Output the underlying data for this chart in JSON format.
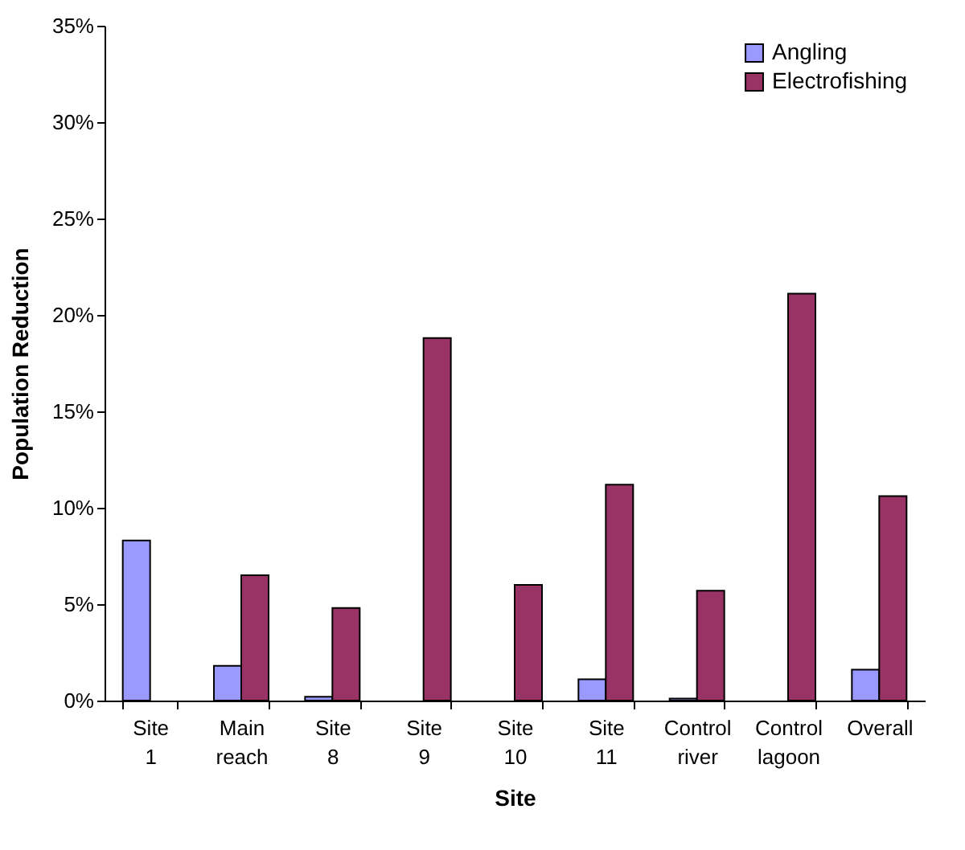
{
  "chart_data": {
    "type": "bar",
    "xlabel": "Site",
    "ylabel": "Population Reduction",
    "categories": [
      "Site 1",
      "Main reach",
      "Site 8",
      "Site 9",
      "Site 10",
      "Site 11",
      "Control river",
      "Control lagoon",
      "Overall"
    ],
    "series": [
      {
        "name": "Angling",
        "color": "#9999ff",
        "values": [
          8.3,
          1.8,
          0.2,
          null,
          null,
          1.1,
          0.1,
          null,
          1.6
        ]
      },
      {
        "name": "Electrofishing",
        "color": "#993366",
        "values": [
          null,
          6.5,
          4.8,
          18.8,
          6.0,
          11.2,
          5.7,
          21.1,
          10.6
        ]
      }
    ],
    "ylim": [
      0,
      35
    ],
    "yticks": [
      {
        "value": 0,
        "label": "0%"
      },
      {
        "value": 5,
        "label": "5%"
      },
      {
        "value": 10,
        "label": "10%"
      },
      {
        "value": 15,
        "label": "15%"
      },
      {
        "value": 20,
        "label": "20%"
      },
      {
        "value": 25,
        "label": "25%"
      },
      {
        "value": 30,
        "label": "30%"
      },
      {
        "value": 35,
        "label": "35%"
      }
    ],
    "legend": "top right",
    "grid": false
  }
}
